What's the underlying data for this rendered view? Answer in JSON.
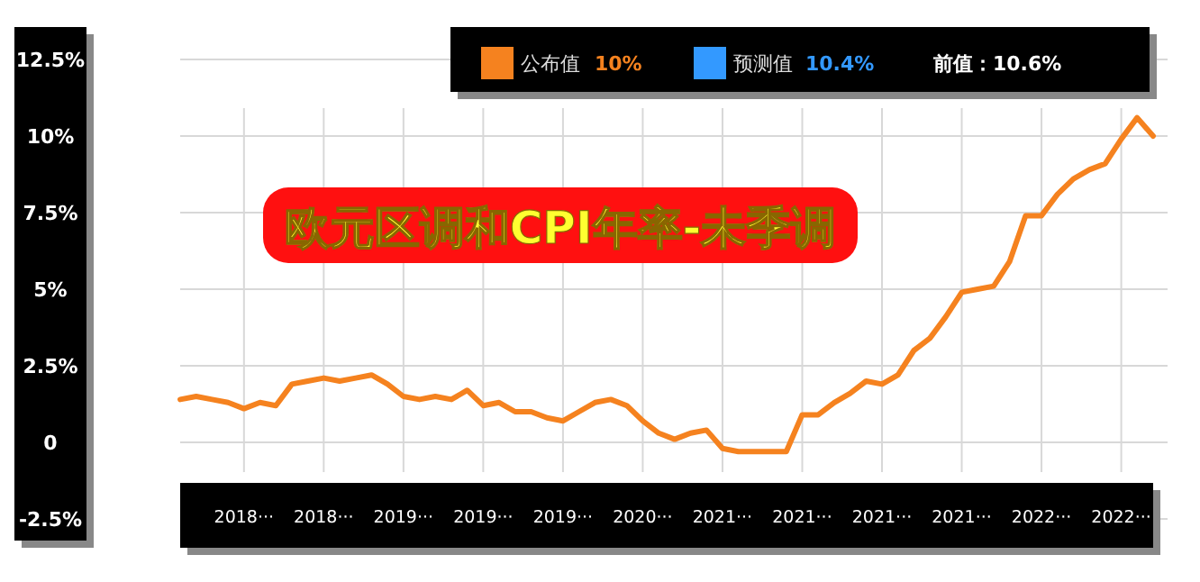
{
  "chart_data": {
    "type": "line",
    "title": "欧元区调和CPI年率-未季调",
    "categories": [
      null,
      null,
      null,
      null,
      "2018···",
      null,
      null,
      null,
      null,
      "2018···",
      null,
      null,
      null,
      null,
      "2019···",
      null,
      null,
      null,
      null,
      "2019···",
      null,
      null,
      null,
      null,
      "2019···",
      null,
      null,
      null,
      null,
      "2020···",
      null,
      null,
      null,
      null,
      "2021···",
      null,
      null,
      null,
      null,
      "2021···",
      null,
      null,
      null,
      null,
      "2021···",
      null,
      null,
      null,
      null,
      "2021···",
      null,
      null,
      null,
      null,
      "2022···",
      null,
      null,
      null,
      null,
      "2022···",
      null,
      null
    ],
    "series": [
      {
        "name": "公布值",
        "color": "#f5821f",
        "values": [
          1.4,
          1.5,
          1.4,
          1.3,
          1.1,
          1.3,
          1.2,
          1.9,
          2.0,
          2.1,
          2.0,
          2.1,
          2.2,
          1.9,
          1.5,
          1.4,
          1.5,
          1.4,
          1.7,
          1.2,
          1.3,
          1.0,
          1.0,
          0.8,
          0.7,
          1.0,
          1.3,
          1.4,
          1.2,
          0.7,
          0.3,
          0.1,
          0.3,
          0.4,
          -0.2,
          -0.3,
          -0.3,
          -0.3,
          -0.3,
          0.9,
          0.9,
          1.3,
          1.6,
          2.0,
          1.9,
          2.2,
          3.0,
          3.4,
          4.1,
          4.9,
          5.0,
          5.1,
          5.9,
          7.4,
          7.4,
          8.1,
          8.6,
          8.9,
          9.1,
          9.9,
          10.6,
          10.0
        ]
      }
    ],
    "ylim": [
      -2.5,
      12.5
    ],
    "yticks": [
      {
        "value": -2.5,
        "label": "-2.5%"
      },
      {
        "value": 0,
        "label": "0"
      },
      {
        "value": 2.5,
        "label": "2.5%"
      },
      {
        "value": 5,
        "label": "5%"
      },
      {
        "value": 7.5,
        "label": "7.5%"
      },
      {
        "value": 10,
        "label": "10%"
      },
      {
        "value": 12.5,
        "label": "12.5%"
      }
    ],
    "grid": true,
    "legend": "top",
    "annotations": [
      "10%",
      "预测值",
      "10.4%",
      "前值：10.6%"
    ]
  }
}
